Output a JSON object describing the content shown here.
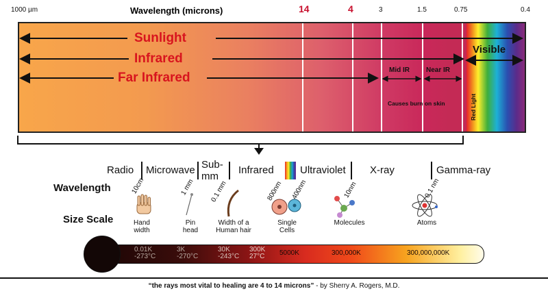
{
  "header": {
    "left_unit": "1000 µm",
    "title": "Wavelength (microns)",
    "ticks": [
      "14",
      "4",
      "3",
      "1.5",
      "0.75",
      "0.4"
    ]
  },
  "spectrum": {
    "sunlight": "Sunlight",
    "infrared": "Infrared",
    "far_infrared": "Far Infrared",
    "visible": "Visible",
    "mid_ir": "Mid IR",
    "near_ir": "Near IR",
    "burn_note": "Causes burn on skin",
    "red_light": "Red Light"
  },
  "categories": [
    "Radio",
    "Microwave",
    "Sub-mm",
    "Infrared",
    "Ultraviolet",
    "X-ray",
    "Gamma-ray"
  ],
  "rows": {
    "wavelength": "Wavelength",
    "size_scale": "Size Scale"
  },
  "scale_items": [
    {
      "wavelength": "10cm",
      "caption1": "Hand",
      "caption2": "width"
    },
    {
      "wavelength": "1 mm",
      "caption1": "Pin",
      "caption2": "head"
    },
    {
      "wavelength": "0.1 mm",
      "caption1": "Width of a",
      "caption2": "Human hair"
    },
    {
      "wavelength": "800nm",
      "wavelength2": "400nm",
      "caption1": "Single",
      "caption2": "Cells"
    },
    {
      "wavelength": "10nm",
      "caption1": "Molecules",
      "caption2": ""
    },
    {
      "wavelength": "0.1 nm",
      "caption1": "Atoms",
      "caption2": ""
    }
  ],
  "temperatures": [
    {
      "k": "0.01K",
      "c": "-273°C"
    },
    {
      "k": "3K",
      "c": "-270°C"
    },
    {
      "k": "30K",
      "c": "-243°C"
    },
    {
      "k": "300K",
      "c": "27°C"
    },
    {
      "k": "5000K",
      "c": ""
    },
    {
      "k": "300,000K",
      "c": ""
    },
    {
      "k": "300,000,000K",
      "c": ""
    }
  ],
  "quote": {
    "text": "“the rays most vital to healing are 4 to 14 microns”",
    "author": " - by Sherry A. Rogers, M.D."
  }
}
